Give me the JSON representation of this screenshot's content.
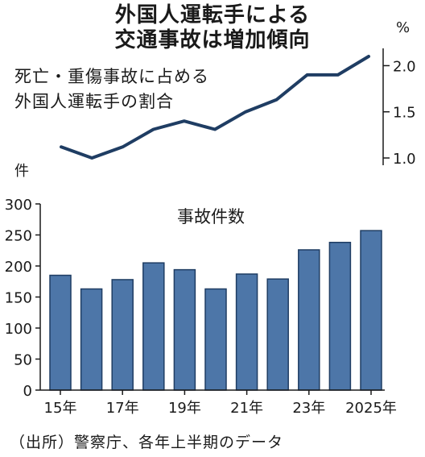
{
  "title": {
    "line1": "外国人運転手による",
    "line2": "交通事故は増加傾向"
  },
  "source": "（出所）警察庁、各年上半期のデータ",
  "colors": {
    "line": "#1f3d63",
    "bar_fill": "#4d76a8",
    "bar_stroke": "#1f3d63"
  },
  "chart_data": [
    {
      "type": "line",
      "label_lines": [
        "死亡・重傷事故に占める",
        "外国人運転手の割合"
      ],
      "unit": "%",
      "ylim": [
        1.0,
        2.1
      ],
      "yticks": [
        "2.0",
        "1.5",
        "1.0"
      ],
      "ytick_values": [
        2.0,
        1.5,
        1.0
      ],
      "x": [
        2015,
        2016,
        2017,
        2018,
        2019,
        2020,
        2021,
        2022,
        2023,
        2024,
        2025
      ],
      "values": [
        1.12,
        1.0,
        1.12,
        1.31,
        1.4,
        1.31,
        1.5,
        1.63,
        1.9,
        1.9,
        2.1
      ]
    },
    {
      "type": "bar",
      "title": "事故件数",
      "unit": "件",
      "ylim": [
        0,
        300
      ],
      "yticks": [
        "300",
        "250",
        "200",
        "150",
        "100",
        "50",
        "0"
      ],
      "ytick_values": [
        300,
        250,
        200,
        150,
        100,
        50,
        0
      ],
      "categories": [
        "2015",
        "2016",
        "2017",
        "2018",
        "2019",
        "2020",
        "2021",
        "2022",
        "2023",
        "2024",
        "2025"
      ],
      "xtick_labels": [
        "15年",
        "17年",
        "19年",
        "21年",
        "23年",
        "2025年"
      ],
      "xtick_index": [
        0,
        2,
        4,
        6,
        8,
        10
      ],
      "values": [
        185,
        163,
        178,
        205,
        194,
        163,
        187,
        179,
        226,
        238,
        257
      ]
    }
  ]
}
